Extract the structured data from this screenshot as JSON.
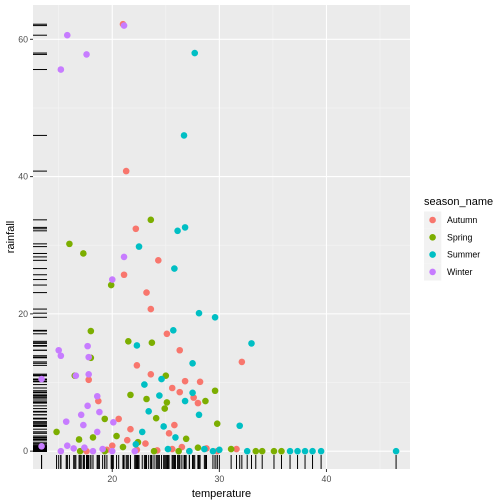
{
  "chart_data": {
    "type": "scatter",
    "xlabel": "temperature",
    "ylabel": "rainfall",
    "xlim": [
      12.6,
      47.8
    ],
    "ylim": [
      -2.6,
      65
    ],
    "x_ticks": [
      20,
      30,
      40
    ],
    "y_ticks": [
      0,
      20,
      40,
      60
    ],
    "grid": true,
    "rug": true,
    "legend_title": "season_name",
    "legend_position": "right",
    "series": [
      {
        "name": "Autumn",
        "color": "#F8766D",
        "points": [
          [
            21.0,
            62.2
          ],
          [
            21.3,
            40.8
          ],
          [
            22.2,
            32.4
          ],
          [
            24.3,
            27.8
          ],
          [
            21.1,
            25.7
          ],
          [
            23.2,
            23.1
          ],
          [
            23.6,
            20.7
          ],
          [
            25.1,
            17.1
          ],
          [
            26.3,
            14.7
          ],
          [
            22.3,
            12.5
          ],
          [
            32.1,
            13.0
          ],
          [
            23.6,
            11.2
          ],
          [
            26.8,
            10.2
          ],
          [
            28.2,
            10.1
          ],
          [
            17.8,
            10.4
          ],
          [
            25.6,
            9.2
          ],
          [
            26.3,
            8.6
          ],
          [
            27.6,
            7.8
          ],
          [
            28.0,
            7.0
          ],
          [
            18.7,
            7.3
          ],
          [
            20.6,
            4.7
          ],
          [
            25.8,
            3.8
          ],
          [
            21.7,
            3.2
          ],
          [
            25.3,
            2.6
          ],
          [
            21.4,
            1.6
          ],
          [
            23.1,
            1.1
          ],
          [
            20.0,
            0.8
          ],
          [
            26.5,
            0.6
          ],
          [
            28.8,
            0.4
          ],
          [
            31.6,
            0.3
          ],
          [
            22.3,
            0.2
          ],
          [
            24.2,
            0.1
          ],
          [
            29.8,
            0.0
          ],
          [
            17.6,
            0.0
          ],
          [
            19.5,
            0.2
          ],
          [
            27.2,
            0.0
          ],
          [
            25.6,
            0.3
          ]
        ]
      },
      {
        "name": "Spring",
        "color": "#7CAE00",
        "points": [
          [
            23.6,
            33.7
          ],
          [
            16.0,
            30.2
          ],
          [
            17.3,
            28.8
          ],
          [
            19.9,
            24.2
          ],
          [
            18.0,
            17.5
          ],
          [
            21.5,
            16.0
          ],
          [
            23.7,
            15.8
          ],
          [
            18.0,
            13.6
          ],
          [
            25.0,
            11.0
          ],
          [
            16.5,
            11.0
          ],
          [
            29.6,
            8.8
          ],
          [
            21.7,
            8.2
          ],
          [
            23.2,
            7.6
          ],
          [
            28.7,
            7.3
          ],
          [
            25.1,
            7.1
          ],
          [
            24.9,
            6.2
          ],
          [
            19.3,
            4.7
          ],
          [
            24.1,
            4.8
          ],
          [
            29.8,
            4.0
          ],
          [
            14.8,
            2.8
          ],
          [
            18.2,
            2.0
          ],
          [
            20.4,
            2.2
          ],
          [
            16.9,
            1.7
          ],
          [
            26.9,
            1.8
          ],
          [
            22.4,
            1.3
          ],
          [
            21.0,
            0.6
          ],
          [
            28.0,
            0.5
          ],
          [
            31.1,
            0.3
          ],
          [
            19.3,
            0.0
          ],
          [
            33.4,
            0.0
          ],
          [
            34.0,
            0.0
          ],
          [
            35.1,
            0.0
          ],
          [
            35.8,
            0.0
          ],
          [
            23.9,
            0.0
          ],
          [
            26.2,
            0.0
          ],
          [
            17.0,
            0.0
          ]
        ]
      },
      {
        "name": "Summer",
        "color": "#00BFC4",
        "points": [
          [
            27.7,
            58.0
          ],
          [
            26.7,
            46.0
          ],
          [
            26.8,
            32.6
          ],
          [
            26.1,
            32.1
          ],
          [
            22.5,
            29.8
          ],
          [
            25.8,
            26.6
          ],
          [
            28.1,
            20.1
          ],
          [
            29.6,
            19.5
          ],
          [
            25.7,
            17.6
          ],
          [
            33.0,
            15.7
          ],
          [
            22.3,
            15.4
          ],
          [
            27.5,
            12.8
          ],
          [
            24.6,
            10.5
          ],
          [
            23.0,
            9.7
          ],
          [
            27.5,
            8.5
          ],
          [
            24.4,
            8.1
          ],
          [
            26.8,
            7.3
          ],
          [
            23.4,
            5.8
          ],
          [
            28.1,
            5.3
          ],
          [
            31.9,
            3.7
          ],
          [
            24.8,
            3.6
          ],
          [
            22.8,
            2.8
          ],
          [
            25.9,
            2.0
          ],
          [
            22.2,
            1.0
          ],
          [
            28.6,
            0.3
          ],
          [
            30.0,
            0.2
          ],
          [
            36.6,
            0.0
          ],
          [
            37.3,
            0.0
          ],
          [
            38.0,
            0.0
          ],
          [
            38.7,
            0.0
          ],
          [
            39.5,
            0.0
          ],
          [
            46.5,
            0.0
          ],
          [
            27.2,
            0.0
          ],
          [
            29.4,
            0.0
          ],
          [
            32.6,
            0.0
          ],
          [
            25.2,
            0.3
          ]
        ]
      },
      {
        "name": "Winter",
        "color": "#C77CFF",
        "points": [
          [
            21.1,
            62.0
          ],
          [
            15.8,
            60.6
          ],
          [
            17.6,
            57.8
          ],
          [
            15.2,
            55.6
          ],
          [
            21.1,
            28.3
          ],
          [
            20.0,
            25.0
          ],
          [
            15.0,
            14.7
          ],
          [
            17.7,
            15.3
          ],
          [
            15.2,
            13.9
          ],
          [
            17.8,
            13.7
          ],
          [
            13.4,
            10.5
          ],
          [
            16.6,
            11.0
          ],
          [
            17.8,
            11.2
          ],
          [
            18.6,
            8.0
          ],
          [
            17.7,
            6.6
          ],
          [
            18.8,
            5.7
          ],
          [
            17.1,
            5.3
          ],
          [
            20.1,
            4.2
          ],
          [
            15.7,
            4.3
          ],
          [
            17.3,
            3.8
          ],
          [
            18.6,
            2.8
          ],
          [
            13.4,
            0.7
          ],
          [
            15.8,
            0.8
          ],
          [
            16.4,
            0.4
          ],
          [
            17.4,
            0.5
          ],
          [
            19.1,
            0.3
          ],
          [
            20.0,
            0.0
          ],
          [
            22.1,
            0.0
          ],
          [
            15.2,
            0.0
          ],
          [
            18.2,
            0.0
          ]
        ]
      }
    ]
  }
}
